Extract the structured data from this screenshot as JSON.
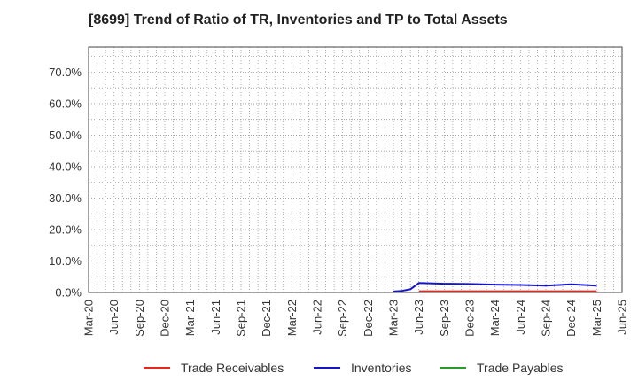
{
  "chart_data": {
    "type": "line",
    "title": "[8699]  Trend of Ratio of TR, Inventories and TP to Total Assets",
    "xlabel": "",
    "ylabel": "",
    "x_ticks": [
      "Mar-20",
      "Jun-20",
      "Sep-20",
      "Dec-20",
      "Mar-21",
      "Jun-21",
      "Sep-21",
      "Dec-21",
      "Mar-22",
      "Jun-22",
      "Sep-22",
      "Dec-22",
      "Mar-23",
      "Jun-23",
      "Sep-23",
      "Dec-23",
      "Mar-24",
      "Jun-24",
      "Sep-24",
      "Dec-24",
      "Mar-25",
      "Jun-25"
    ],
    "y_ticks": [
      "0.0%",
      "10.0%",
      "20.0%",
      "30.0%",
      "40.0%",
      "50.0%",
      "60.0%",
      "70.0%"
    ],
    "ylim": [
      0,
      78
    ],
    "grid": true,
    "legend_position": "bottom",
    "series": [
      {
        "name": "Trade Receivables",
        "color": "#e8271e",
        "x": [
          "Jun-23",
          "Sep-23",
          "Dec-23",
          "Mar-24",
          "Jun-24",
          "Sep-24",
          "Dec-24",
          "Mar-25"
        ],
        "values": [
          0.4,
          0.4,
          0.4,
          0.4,
          0.4,
          0.4,
          0.4,
          0.4
        ]
      },
      {
        "name": "Inventories",
        "color": "#1515c8",
        "x": [
          "Mar-23",
          "Apr-23",
          "May-23",
          "Jun-23",
          "Sep-23",
          "Dec-23",
          "Mar-24",
          "Jun-24",
          "Sep-24",
          "Dec-24",
          "Mar-25"
        ],
        "values": [
          0.3,
          0.5,
          1.0,
          3.0,
          2.8,
          2.7,
          2.5,
          2.4,
          2.2,
          2.6,
          2.2
        ]
      },
      {
        "name": "Trade Payables",
        "color": "#2a9a2a",
        "x": [],
        "values": []
      }
    ]
  }
}
